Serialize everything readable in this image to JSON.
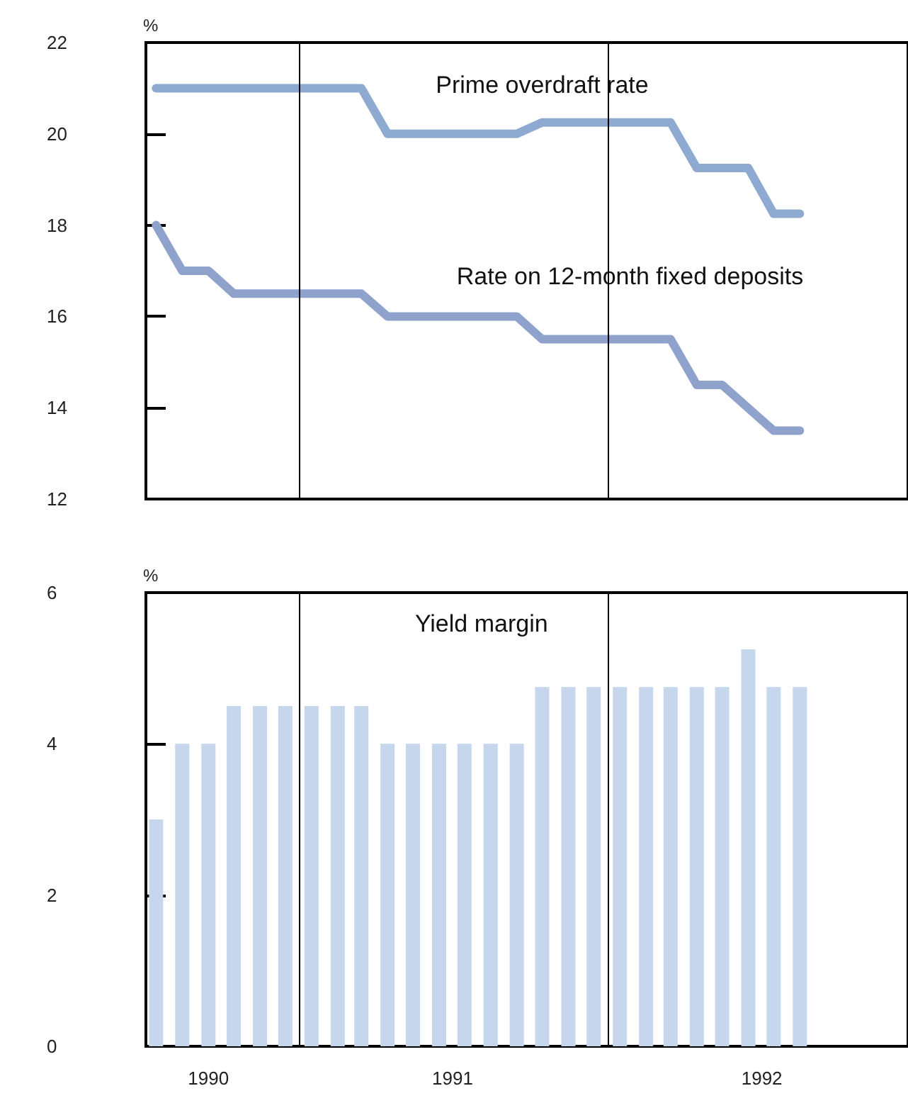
{
  "chart_data": [
    {
      "type": "line",
      "ylabel": "%",
      "xlim": [
        "1990-07-03",
        "1992-12-21"
      ],
      "ylim": [
        12,
        22
      ],
      "yticks": [
        12,
        14,
        16,
        18,
        20,
        22
      ],
      "tick_labels": "y",
      "grid": false,
      "legend": false,
      "marker": "none",
      "line_style": "solid",
      "ref_lines": [
        {
          "axis": "x",
          "value": "1991-01-01",
          "color": "#000000"
        },
        {
          "axis": "x",
          "value": "1992-01-01",
          "color": "#000000"
        }
      ],
      "series": [
        {
          "name": "Prime overdraft rate",
          "color": "#8eaad0",
          "x": [
            "1990-07-15",
            "1991-03-15",
            "1991-04-15",
            "1991-09-15",
            "1991-10-15",
            "1992-03-15",
            "1992-04-15",
            "1992-06-15",
            "1992-07-15",
            "1992-08-15"
          ],
          "values": [
            21,
            21,
            20,
            20,
            20.25,
            20.25,
            19.25,
            19.25,
            18.25,
            18.25
          ]
        },
        {
          "name": "Rate on 12-month fixed deposits",
          "color": "#8ea2cc",
          "x": [
            "1990-07-15",
            "1990-08-15",
            "1990-09-15",
            "1990-10-15",
            "1991-03-15",
            "1991-04-15",
            "1991-09-15",
            "1991-10-15",
            "1992-03-15",
            "1992-04-15",
            "1992-05-15",
            "1992-07-15",
            "1992-08-15"
          ],
          "values": [
            18,
            17,
            17,
            16.5,
            16.5,
            16,
            16,
            15.5,
            15.5,
            14.5,
            14.5,
            13.5,
            13.5
          ]
        }
      ]
    },
    {
      "type": "bar",
      "ylabel": "%",
      "xlim": [
        "1990-07-03",
        "1992-12-21"
      ],
      "ylim": [
        0,
        6
      ],
      "yticks": [
        0,
        2,
        4,
        6
      ],
      "xticks": [
        {
          "value": "1990-09-15",
          "label": "1990"
        },
        {
          "value": "1991-07-01",
          "label": "1991"
        },
        {
          "value": "1992-07-01",
          "label": "1992"
        }
      ],
      "grid": false,
      "legend": false,
      "ref_lines": [
        {
          "axis": "x",
          "value": "1991-01-01",
          "color": "#000000"
        },
        {
          "axis": "x",
          "value": "1992-01-01",
          "color": "#000000"
        }
      ],
      "series": [
        {
          "name": "Yield margin",
          "color": "#c6d6ec",
          "x": [
            "1990-07-15",
            "1990-08-15",
            "1990-09-15",
            "1990-10-15",
            "1990-11-15",
            "1990-12-15",
            "1991-01-15",
            "1991-02-15",
            "1991-03-15",
            "1991-04-15",
            "1991-05-15",
            "1991-06-15",
            "1991-07-15",
            "1991-08-15",
            "1991-09-15",
            "1991-10-15",
            "1991-11-15",
            "1991-12-15",
            "1992-01-15",
            "1992-02-15",
            "1992-03-15",
            "1992-04-15",
            "1992-05-15",
            "1992-06-15",
            "1992-07-15",
            "1992-08-15"
          ],
          "values": [
            3,
            4,
            4,
            4.5,
            4.5,
            4.5,
            4.5,
            4.5,
            4.5,
            4,
            4,
            4,
            4,
            4,
            4,
            4.75,
            4.75,
            4.75,
            4.75,
            4.75,
            4.75,
            4.75,
            4.75,
            5.25,
            4.75,
            4.75
          ]
        }
      ]
    }
  ]
}
